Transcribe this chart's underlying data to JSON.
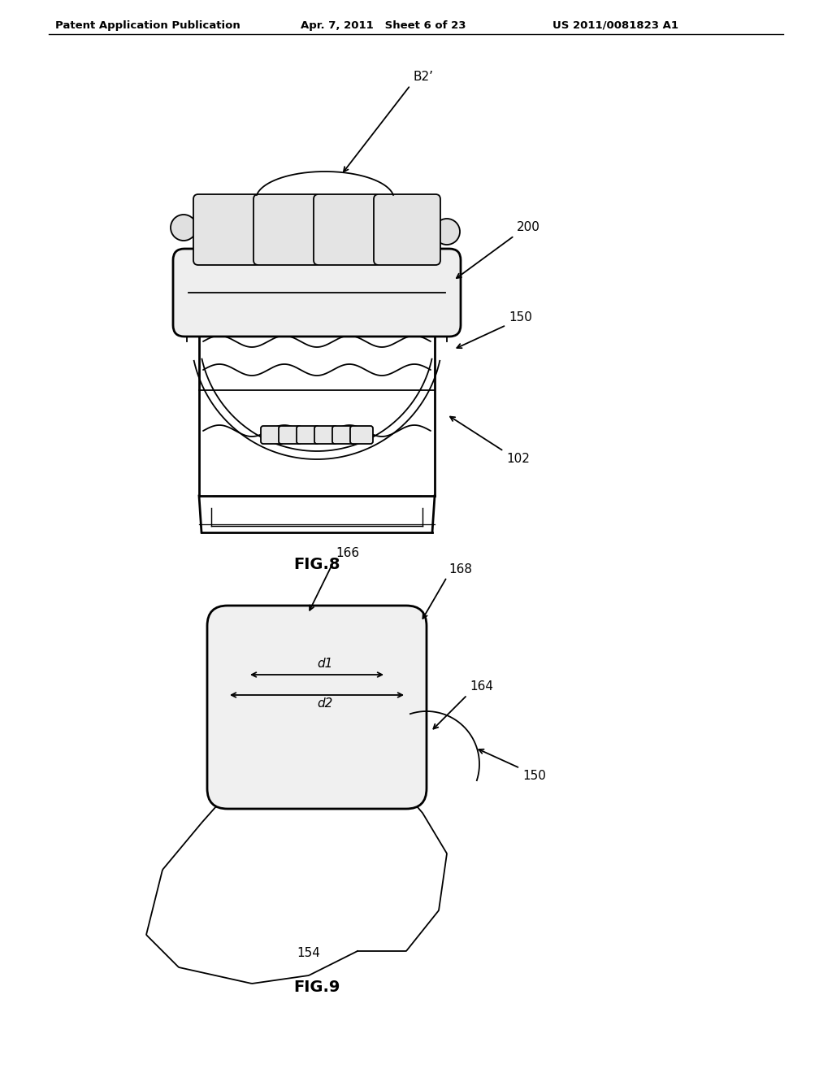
{
  "bg_color": "#ffffff",
  "header_left": "Patent Application Publication",
  "header_center": "Apr. 7, 2011   Sheet 6 of 23",
  "header_right": "US 2011/0081823 A1",
  "fig8_label": "FIG.8",
  "fig9_label": "FIG.9",
  "ann8_B2": "B2’",
  "ann8_200": "200",
  "ann8_150": "150",
  "ann8_102": "102",
  "ann9_166": "166",
  "ann9_168": "168",
  "ann9_d1": "d1",
  "ann9_d2": "d2",
  "ann9_164": "164",
  "ann9_150": "150",
  "ann9_154": "154",
  "lc": "#000000",
  "lw": 1.3,
  "lwt": 2.0
}
